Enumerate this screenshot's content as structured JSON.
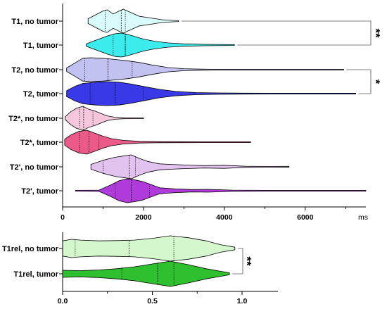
{
  "chart_data": [
    {
      "type": "violin",
      "unit_label": "ms",
      "xlim": [
        0,
        7500
      ],
      "x_ticks": [
        0,
        2000,
        4000,
        6000
      ],
      "x_tick_labels": [
        "0",
        "2000",
        "4000",
        "6000"
      ],
      "series": [
        {
          "name": "T1, no tumor",
          "color": "#d9fbfb",
          "min": 630,
          "max": 2870,
          "q1": 1050,
          "median": 1450,
          "q3": 1550,
          "density": [
            [
              630,
              0.2
            ],
            [
              800,
              0.5
            ],
            [
              1000,
              0.85
            ],
            [
              1100,
              0.95
            ],
            [
              1250,
              0.6
            ],
            [
              1400,
              0.85
            ],
            [
              1500,
              1.0
            ],
            [
              1700,
              0.7
            ],
            [
              1900,
              0.4
            ],
            [
              2100,
              0.3
            ],
            [
              2300,
              0.2
            ],
            [
              2450,
              0.12
            ],
            [
              2600,
              0.08
            ],
            [
              2870,
              0.03
            ]
          ]
        },
        {
          "name": "T1, tumor",
          "color": "#3cecec",
          "min": 580,
          "max": 4250,
          "q1": 1250,
          "median": 1550,
          "q3": 1550,
          "density": [
            [
              580,
              0.08
            ],
            [
              700,
              0.25
            ],
            [
              900,
              0.5
            ],
            [
              1100,
              0.75
            ],
            [
              1300,
              0.95
            ],
            [
              1450,
              1.0
            ],
            [
              1600,
              0.9
            ],
            [
              1800,
              0.7
            ],
            [
              2000,
              0.5
            ],
            [
              2300,
              0.3
            ],
            [
              2600,
              0.18
            ],
            [
              3000,
              0.1
            ],
            [
              3500,
              0.06
            ],
            [
              4250,
              0.02
            ]
          ]
        },
        {
          "name": "T2, no tumor",
          "color": "#c2c2f2",
          "min": 100,
          "max": 6950,
          "q1": 550,
          "median": 1120,
          "q3": 1720,
          "density": [
            [
              100,
              0.15
            ],
            [
              300,
              0.55
            ],
            [
              500,
              0.95
            ],
            [
              700,
              1.0
            ],
            [
              1000,
              0.95
            ],
            [
              1300,
              0.85
            ],
            [
              1600,
              0.75
            ],
            [
              1900,
              0.6
            ],
            [
              2200,
              0.4
            ],
            [
              2600,
              0.18
            ],
            [
              3000,
              0.08
            ],
            [
              3400,
              0.05
            ],
            [
              3700,
              0.03
            ],
            [
              4500,
              0.02
            ],
            [
              5500,
              0.01
            ],
            [
              6950,
              0.01
            ]
          ]
        },
        {
          "name": "T2, tumor",
          "color": "#3939e8",
          "min": 100,
          "max": 7250,
          "q1": 680,
          "median": 1300,
          "q3": 2000,
          "density": [
            [
              100,
              0.25
            ],
            [
              300,
              0.6
            ],
            [
              500,
              0.85
            ],
            [
              800,
              0.95
            ],
            [
              1100,
              1.0
            ],
            [
              1400,
              0.95
            ],
            [
              1700,
              0.8
            ],
            [
              2000,
              0.6
            ],
            [
              2400,
              0.35
            ],
            [
              2800,
              0.18
            ],
            [
              3300,
              0.09
            ],
            [
              3800,
              0.06
            ],
            [
              4500,
              0.04
            ],
            [
              5500,
              0.02
            ],
            [
              6500,
              0.02
            ],
            [
              7250,
              0.01
            ]
          ]
        },
        {
          "name": "T2*, no tumor",
          "color": "#f5c6dc",
          "min": 60,
          "max": 2000,
          "q1": 420,
          "median": 520,
          "q3": 750,
          "density": [
            [
              60,
              0.1
            ],
            [
              200,
              0.55
            ],
            [
              350,
              0.85
            ],
            [
              500,
              1.0
            ],
            [
              650,
              0.75
            ],
            [
              800,
              0.6
            ],
            [
              950,
              0.4
            ],
            [
              1100,
              0.2
            ],
            [
              1300,
              0.08
            ],
            [
              1500,
              0.04
            ],
            [
              1800,
              0.03
            ],
            [
              2000,
              0.03
            ]
          ]
        },
        {
          "name": "T2*, tumor",
          "color": "#ec5a8a",
          "min": 50,
          "max": 4650,
          "q1": 420,
          "median": 650,
          "q3": 900,
          "density": [
            [
              50,
              0.25
            ],
            [
              200,
              0.6
            ],
            [
              400,
              0.9
            ],
            [
              600,
              1.0
            ],
            [
              800,
              0.75
            ],
            [
              1000,
              0.5
            ],
            [
              1200,
              0.3
            ],
            [
              1500,
              0.15
            ],
            [
              1900,
              0.07
            ],
            [
              2300,
              0.05
            ],
            [
              2800,
              0.04
            ],
            [
              3500,
              0.03
            ],
            [
              4650,
              0.01
            ]
          ]
        },
        {
          "name": "T2', no tumor",
          "color": "#e4c2f0",
          "min": 700,
          "max": 5600,
          "q1": 1000,
          "median": 1650,
          "q3": 1800,
          "density": [
            [
              700,
              0.2
            ],
            [
              1000,
              0.55
            ],
            [
              1300,
              0.8
            ],
            [
              1500,
              0.9
            ],
            [
              1700,
              1.0
            ],
            [
              1900,
              0.7
            ],
            [
              2100,
              0.45
            ],
            [
              2400,
              0.25
            ],
            [
              2700,
              0.2
            ],
            [
              3000,
              0.15
            ],
            [
              3500,
              0.1
            ],
            [
              4000,
              0.13
            ],
            [
              4500,
              0.05
            ],
            [
              5000,
              0.03
            ],
            [
              5600,
              0.04
            ]
          ]
        },
        {
          "name": "T2', tumor",
          "color": "#b13ada",
          "min": 320,
          "max": 7500,
          "q1": 1300,
          "median": 1700,
          "q3": 2150,
          "density": [
            [
              320,
              0.01
            ],
            [
              900,
              0.05
            ],
            [
              1200,
              0.5
            ],
            [
              1400,
              0.85
            ],
            [
              1600,
              1.0
            ],
            [
              1800,
              0.9
            ],
            [
              2000,
              0.75
            ],
            [
              2200,
              0.5
            ],
            [
              2400,
              0.25
            ],
            [
              2800,
              0.15
            ],
            [
              3200,
              0.1
            ],
            [
              3600,
              0.12
            ],
            [
              4200,
              0.05
            ],
            [
              5000,
              0.03
            ],
            [
              6000,
              0.02
            ],
            [
              7500,
              0.01
            ]
          ]
        }
      ],
      "annotations": [
        {
          "label": "**",
          "between": [
            "T1, no tumor",
            "T1, tumor"
          ]
        },
        {
          "label": "*",
          "between": [
            "T2, no tumor",
            "T2, tumor"
          ]
        }
      ]
    },
    {
      "type": "violin",
      "xlim": [
        0,
        1.2
      ],
      "x_ticks": [
        0,
        0.5,
        1.0
      ],
      "x_tick_labels": [
        "0.0",
        "0.5",
        "1.0"
      ],
      "series": [
        {
          "name": "T1rel, no tumor",
          "color": "#d4f7cd",
          "min": 0.0,
          "max": 0.96,
          "q1": 0.07,
          "median": 0.37,
          "q3": 0.62,
          "density": [
            [
              0.0,
              0.6
            ],
            [
              0.05,
              0.72
            ],
            [
              0.1,
              0.66
            ],
            [
              0.2,
              0.6
            ],
            [
              0.3,
              0.62
            ],
            [
              0.4,
              0.66
            ],
            [
              0.5,
              0.8
            ],
            [
              0.6,
              1.0
            ],
            [
              0.7,
              0.85
            ],
            [
              0.8,
              0.6
            ],
            [
              0.88,
              0.3
            ],
            [
              0.96,
              0.1
            ]
          ]
        },
        {
          "name": "T1rel, tumor",
          "color": "#2ec02e",
          "min": 0.0,
          "max": 0.93,
          "q1": 0.33,
          "median": 0.53,
          "q3": 0.62,
          "density": [
            [
              0.0,
              0.28
            ],
            [
              0.1,
              0.25
            ],
            [
              0.2,
              0.3
            ],
            [
              0.3,
              0.4
            ],
            [
              0.4,
              0.55
            ],
            [
              0.5,
              0.78
            ],
            [
              0.6,
              1.0
            ],
            [
              0.7,
              0.72
            ],
            [
              0.8,
              0.4
            ],
            [
              0.88,
              0.2
            ],
            [
              0.93,
              0.08
            ]
          ]
        }
      ],
      "annotations": [
        {
          "label": "**",
          "between": [
            "T1rel, no tumor",
            "T1rel, tumor"
          ]
        }
      ]
    }
  ]
}
